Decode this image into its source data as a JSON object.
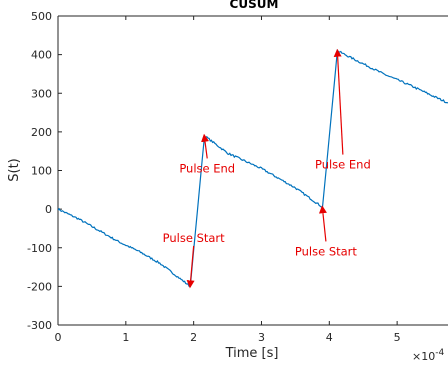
{
  "chart_data": {
    "type": "line",
    "title": "CUSUM",
    "xlabel": "Time [s]",
    "ylabel": "S(t)",
    "x_multiplier": "×10",
    "x_exponent": "-4",
    "xlim": [
      0,
      5.75
    ],
    "ylim": [
      -300,
      500
    ],
    "grid": false,
    "legend": "none",
    "x_ticks": [
      "0",
      "1",
      "2",
      "3",
      "4",
      "5"
    ],
    "y_ticks": [
      "-300",
      "-200",
      "-100",
      "0",
      "100",
      "200",
      "300",
      "400",
      "500"
    ],
    "series": [
      {
        "x": [
          0,
          0.3,
          0.6,
          0.9,
          1.2,
          1.5,
          1.8,
          1.95,
          2.16,
          2.5,
          3.0,
          3.5,
          3.9,
          4.12,
          4.4,
          4.8,
          5.2,
          5.5,
          5.75
        ],
        "y": [
          0,
          -25,
          -55,
          -85,
          -110,
          -140,
          -180,
          -200,
          190,
          145,
          105,
          55,
          5,
          410,
          385,
          350,
          320,
          295,
          275
        ]
      }
    ],
    "annotations": [
      {
        "text": "Pulse Start",
        "x": 1.95,
        "y": -200,
        "label_x": 2.0,
        "label_y": -85
      },
      {
        "text": "Pulse End",
        "x": 2.16,
        "y": 190,
        "label_x": 2.2,
        "label_y": 95
      },
      {
        "text": "Pulse Start",
        "x": 3.9,
        "y": 5,
        "label_x": 3.95,
        "label_y": -120
      },
      {
        "text": "Pulse End",
        "x": 4.12,
        "y": 410,
        "label_x": 4.2,
        "label_y": 105
      }
    ],
    "line_color": "#0072BD",
    "annotation_color": "#e60000"
  }
}
